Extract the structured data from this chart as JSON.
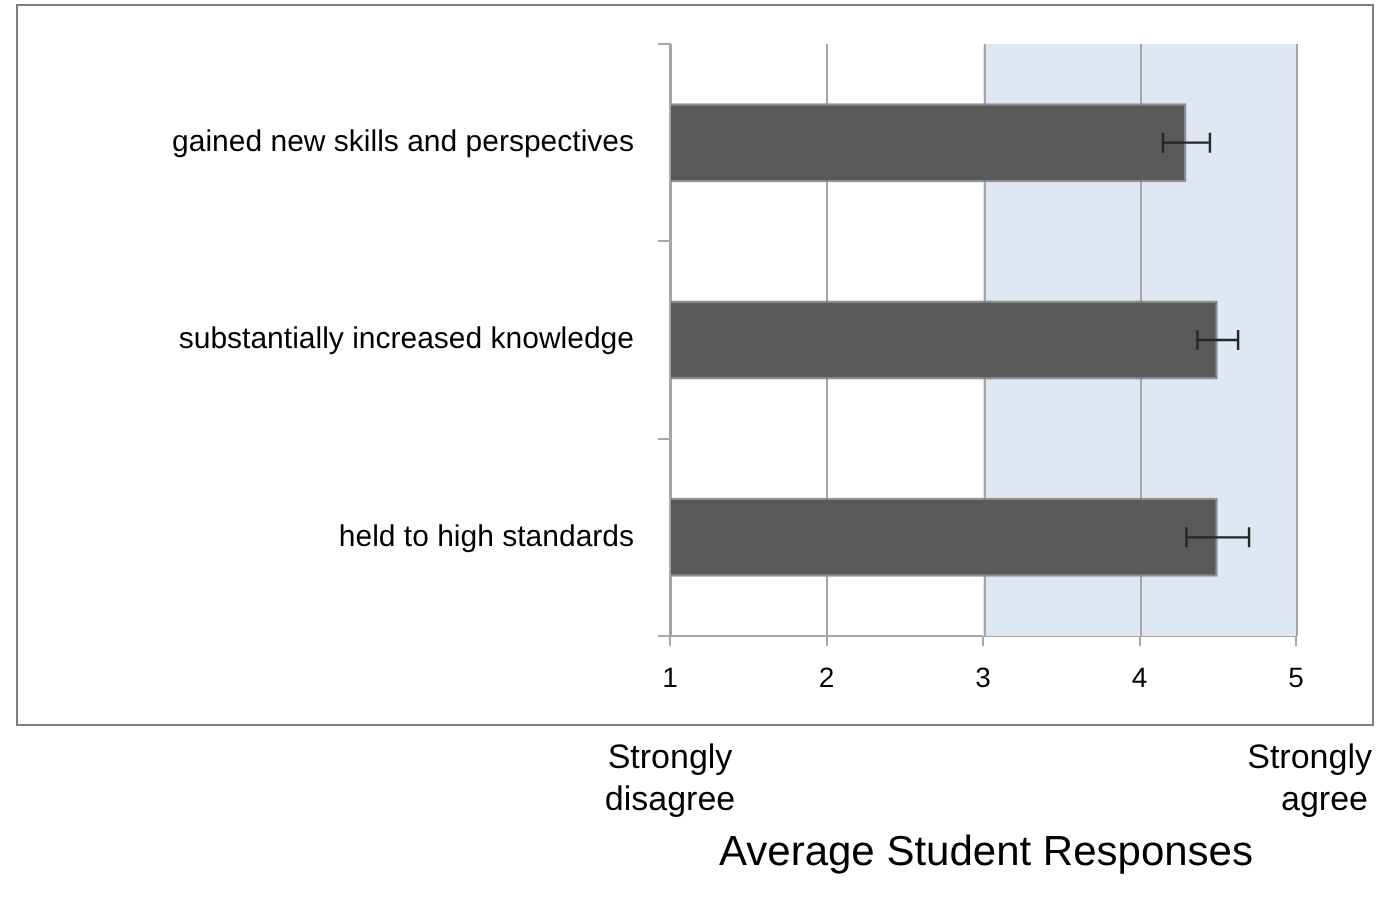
{
  "chart_data": {
    "type": "bar",
    "orientation": "horizontal",
    "categories": [
      "gained new skills and perspectives",
      "substantially increased knowledge",
      "held to high standards"
    ],
    "values": [
      4.3,
      4.5,
      4.5
    ],
    "errors": [
      0.15,
      0.13,
      0.2
    ],
    "color": "#595959",
    "xlim": [
      1,
      5
    ],
    "xticks": [
      1,
      2,
      3,
      4,
      5
    ],
    "xlabel": "Average Student Responses",
    "annotations": [
      "Strongly disagree",
      "Strongly agree"
    ],
    "bands": [
      {
        "axis": "x",
        "from": 3,
        "to": 5,
        "color": "#dfe7f2"
      }
    ],
    "grid": "x",
    "legend": false
  }
}
